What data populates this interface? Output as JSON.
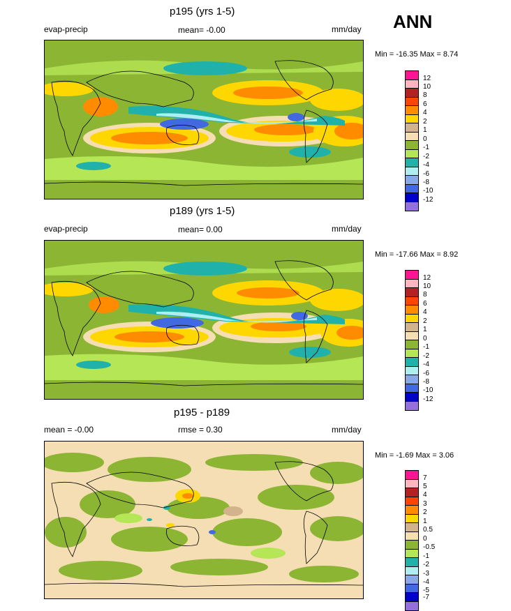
{
  "header": {
    "season": "ANN"
  },
  "units": "mm/day",
  "colors": {
    "seq12": [
      "#ff1493",
      "#ffb6c1",
      "#b22222",
      "#ff4500",
      "#ff8c00",
      "#ffd700",
      "#d2b48c",
      "#f5deb3",
      "#8cb534",
      "#b5e655",
      "#20b2aa",
      "#afeeee",
      "#87a9e8",
      "#4169e1",
      "#0000cd",
      "#9370db"
    ],
    "seq7": [
      "#ff1493",
      "#ffb6c1",
      "#b22222",
      "#ff4500",
      "#ff8c00",
      "#ffd700",
      "#d2b48c",
      "#f5deb3",
      "#8cb534",
      "#b5e655",
      "#20b2aa",
      "#afeeee",
      "#87a9e8",
      "#4169e1",
      "#0000cd",
      "#9370db"
    ]
  },
  "chart_data": [
    {
      "type": "heatmap",
      "title": "p195 (yrs 1-5)",
      "variable": "evap-precip",
      "mean_text": "mean=  -0.00",
      "units": "mm/day",
      "min": -16.35,
      "max": 8.74,
      "minmax_text": "Min = -16.35 Max =   8.74",
      "levels": [
        "12",
        "10",
        "8",
        "6",
        "4",
        "2",
        "1",
        "0",
        "-1",
        "-2",
        "-4",
        "-6",
        "-8",
        "-10",
        "-12"
      ]
    },
    {
      "type": "heatmap",
      "title": "p189 (yrs 1-5)",
      "variable": "evap-precip",
      "mean_text": "mean=  0.00",
      "units": "mm/day",
      "min": -17.66,
      "max": 8.92,
      "minmax_text": "Min = -17.66 Max =   8.92",
      "levels": [
        "12",
        "10",
        "8",
        "6",
        "4",
        "2",
        "1",
        "0",
        "-1",
        "-2",
        "-4",
        "-6",
        "-8",
        "-10",
        "-12"
      ]
    },
    {
      "type": "heatmap",
      "title": "p195 - p189",
      "mean_text": "mean =  -0.00",
      "rmse_text": "rmse =   0.30",
      "units": "mm/day",
      "min": -1.69,
      "max": 3.06,
      "minmax_text": "Min =  -1.69 Max =   3.06",
      "levels": [
        "7",
        "5",
        "4",
        "3",
        "2",
        "1",
        "0.5",
        "0",
        "-0.5",
        "-1",
        "-2",
        "-3",
        "-4",
        "-5",
        "-7"
      ]
    }
  ]
}
